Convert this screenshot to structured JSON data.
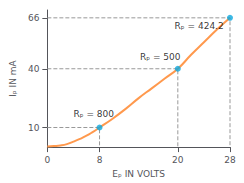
{
  "chart_data": {
    "type": "line",
    "xlabel": "Eₚ IN VOLTS",
    "ylabel": "Iₚ IN mA",
    "x": [
      0,
      1,
      2,
      3,
      4,
      5,
      6,
      7,
      8,
      10,
      12,
      14,
      16,
      18,
      20,
      22,
      24,
      26,
      28
    ],
    "values": [
      0.3,
      0.5,
      0.8,
      1.5,
      2.8,
      4.2,
      5.8,
      7.8,
      10,
      14.5,
      19.5,
      25,
      30,
      35,
      40,
      47,
      53.5,
      60,
      66
    ],
    "points": {
      "x": [
        8,
        20,
        28
      ],
      "values": [
        10,
        40,
        66
      ],
      "marker": "circle",
      "line_style": "dashed"
    },
    "annotations": [
      {
        "text": "Rₚ = 800",
        "x": 4.0,
        "y": 14.5
      },
      {
        "text": "Rₚ = 500",
        "x": 14.2,
        "y": 43.5
      },
      {
        "text": "Rₚ = 424.2",
        "x": 19.5,
        "y": 59.5
      }
    ],
    "xlim": [
      0,
      28
    ],
    "ylim": [
      0,
      70
    ],
    "xticks": [
      0,
      8,
      20,
      28
    ],
    "yticks": [
      10,
      40,
      66
    ],
    "grid": false
  }
}
